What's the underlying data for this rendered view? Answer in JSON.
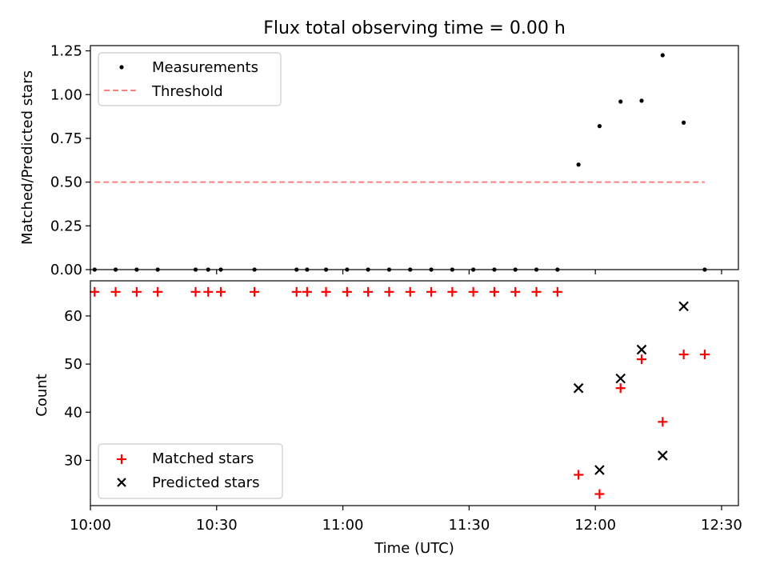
{
  "title": "Flux total observing time = 0.00 h",
  "colors": {
    "measurements": "#000000",
    "threshold": "#ff7f7f",
    "matched": "#ff0000",
    "predicted": "#000000"
  },
  "chart_data": [
    {
      "type": "scatter",
      "panel": "top",
      "ylabel": "Matched/Predicted stars",
      "xlim_min": [
        600,
        754
      ],
      "ylim": [
        0,
        1.28
      ],
      "yticks": [
        0.0,
        0.25,
        0.5,
        0.75,
        1.0,
        1.25
      ],
      "ytick_labels": [
        "0.00",
        "0.25",
        "0.50",
        "0.75",
        "1.00",
        "1.25"
      ],
      "legend": {
        "placement": "upper-left",
        "entries": [
          "Measurements",
          "Threshold"
        ]
      },
      "series": [
        {
          "name": "Measurements",
          "marker": "dot",
          "x_minutes": [
            601,
            606,
            611,
            616,
            625,
            628,
            631,
            639,
            649,
            651.5,
            656,
            661,
            666,
            671,
            676,
            681,
            686,
            691,
            696,
            701,
            706,
            711,
            716,
            721,
            726,
            731,
            736,
            741,
            746
          ],
          "y": [
            0,
            0,
            0,
            0,
            0,
            0,
            0,
            0,
            0,
            0,
            0,
            0,
            0,
            0,
            0,
            0,
            0,
            0,
            0,
            0,
            0,
            0,
            0.6,
            0.82,
            0.96,
            0.965,
            1.225,
            0.84,
            0
          ]
        },
        {
          "name": "Threshold",
          "style": "dashed-line",
          "x_minutes": [
            601,
            746
          ],
          "y": [
            0.5,
            0.5
          ]
        }
      ]
    },
    {
      "type": "scatter",
      "panel": "bottom",
      "ylabel": "Count",
      "xlabel": "Time (UTC)",
      "xlim_min": [
        600,
        754
      ],
      "ylim": [
        20.6,
        67.3
      ],
      "yticks": [
        30,
        40,
        50,
        60
      ],
      "ytick_labels": [
        "30",
        "40",
        "50",
        "60"
      ],
      "xticks_min": [
        600,
        630,
        660,
        690,
        720,
        750
      ],
      "xtick_labels": [
        "10:00",
        "10:30",
        "11:00",
        "11:30",
        "12:00",
        "12:30"
      ],
      "legend": {
        "placement": "lower-left",
        "entries": [
          "Matched stars",
          "Predicted stars"
        ]
      },
      "series": [
        {
          "name": "Matched stars",
          "marker": "plus",
          "x_minutes": [
            601,
            606,
            611,
            616,
            625,
            628,
            631,
            639,
            649,
            651.5,
            656,
            661,
            666,
            671,
            676,
            681,
            686,
            691,
            696,
            701,
            706,
            711,
            716,
            721,
            726,
            731,
            736,
            741,
            746
          ],
          "y": [
            65,
            65,
            65,
            65,
            65,
            65,
            65,
            65,
            65,
            65,
            65,
            65,
            65,
            65,
            65,
            65,
            65,
            65,
            65,
            65,
            65,
            65,
            27,
            23,
            45,
            51,
            38,
            52,
            52
          ]
        },
        {
          "name": "Predicted stars",
          "marker": "x",
          "x_minutes": [
            716,
            721,
            726,
            731,
            736,
            741
          ],
          "y": [
            45,
            28,
            47,
            53,
            31,
            62
          ]
        }
      ]
    }
  ]
}
